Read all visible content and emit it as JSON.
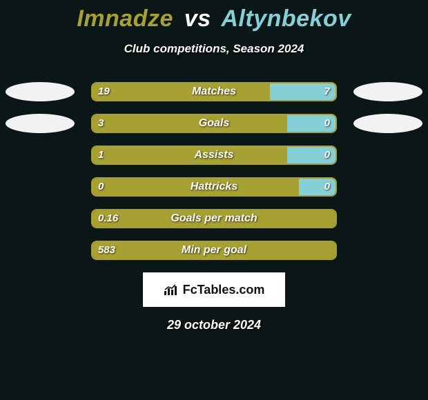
{
  "colors": {
    "background": "#0b1617",
    "p1": "#a7a032",
    "p2": "#87cfd6",
    "bar_border": "#a7a032",
    "bar_text": "#ffffff",
    "title_p1": "#a7a032",
    "title_vs": "#ffffff",
    "title_p2": "#87cfd6",
    "oval": "#f2f2f2"
  },
  "title": {
    "player1": "Imnadze",
    "vs": "vs",
    "player2": "Altynbekov"
  },
  "subtitle": "Club competitions, Season 2024",
  "rows": [
    {
      "label": "Matches",
      "left_val": "19",
      "right_val": "7",
      "left_pct": 73,
      "right_pct": 27,
      "show_ovals": true
    },
    {
      "label": "Goals",
      "left_val": "3",
      "right_val": "0",
      "left_pct": 80,
      "right_pct": 20,
      "show_ovals": true
    },
    {
      "label": "Assists",
      "left_val": "1",
      "right_val": "0",
      "left_pct": 80,
      "right_pct": 20,
      "show_ovals": false
    },
    {
      "label": "Hattricks",
      "left_val": "0",
      "right_val": "0",
      "left_pct": 85,
      "right_pct": 15,
      "show_ovals": false
    },
    {
      "label": "Goals per match",
      "left_val": "0.16",
      "right_val": "",
      "left_pct": 100,
      "right_pct": 0,
      "show_ovals": false
    },
    {
      "label": "Min per goal",
      "left_val": "583",
      "right_val": "",
      "left_pct": 100,
      "right_pct": 0,
      "show_ovals": false
    }
  ],
  "logo": {
    "brand": "FcTables.com"
  },
  "date": "29 october 2024"
}
